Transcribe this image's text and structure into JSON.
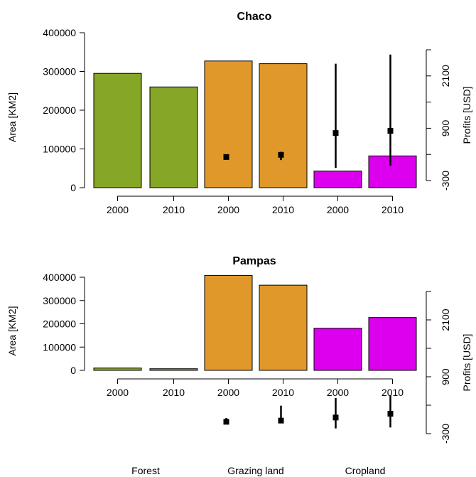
{
  "colors": {
    "forest": "#86a628",
    "grazing": "#e0982b",
    "cropland": "#dd00ee"
  },
  "chart_data": [
    {
      "type": "bar",
      "title": "Chaco",
      "ylabel": "Area [KM2]",
      "y2label": "Profits [USD]",
      "ylim": [
        0,
        400000
      ],
      "y_ticks": [
        "0",
        "100000",
        "200000",
        "300000",
        "400000"
      ],
      "y2lim": [
        -300,
        2700
      ],
      "y2_ticks": [
        "-300",
        "900",
        "2100"
      ],
      "categories": [
        "2000",
        "2010",
        "2000",
        "2010",
        "2000",
        "2010"
      ],
      "groups": [
        "Forest",
        "Forest",
        "Grazing land",
        "Grazing land",
        "Cropland",
        "Cropland"
      ],
      "area": [
        295000,
        260000,
        327000,
        320000,
        43000,
        82000
      ],
      "profit_mean": [
        null,
        null,
        240,
        290,
        790,
        840
      ],
      "profit_low": [
        null,
        null,
        190,
        170,
        -10,
        40
      ],
      "profit_high": [
        null,
        null,
        290,
        360,
        2380,
        2590
      ]
    },
    {
      "type": "bar",
      "title": "Pampas",
      "ylabel": "Area [KM2]",
      "y2label": "Profits [USD]",
      "ylim": [
        0,
        400000
      ],
      "y_ticks": [
        "0",
        "100000",
        "200000",
        "300000",
        "400000"
      ],
      "y2lim": [
        -300,
        2700
      ],
      "y2_ticks": [
        "-300",
        "900",
        "2100"
      ],
      "categories": [
        "2000",
        "2010",
        "2000",
        "2010",
        "2000",
        "2010"
      ],
      "groups": [
        "Forest",
        "Forest",
        "Grazing land",
        "Grazing land",
        "Cropland",
        "Cropland"
      ],
      "area": [
        10000,
        7000,
        408000,
        366000,
        181000,
        227000
      ],
      "profit_mean": [
        null,
        null,
        -50,
        -25,
        40,
        120
      ],
      "profit_low": [
        null,
        null,
        -60,
        -70,
        -190,
        -170
      ],
      "profit_high": [
        null,
        null,
        30,
        290,
        450,
        510
      ]
    }
  ],
  "group_labels": [
    "Forest",
    "Grazing land",
    "Cropland"
  ]
}
